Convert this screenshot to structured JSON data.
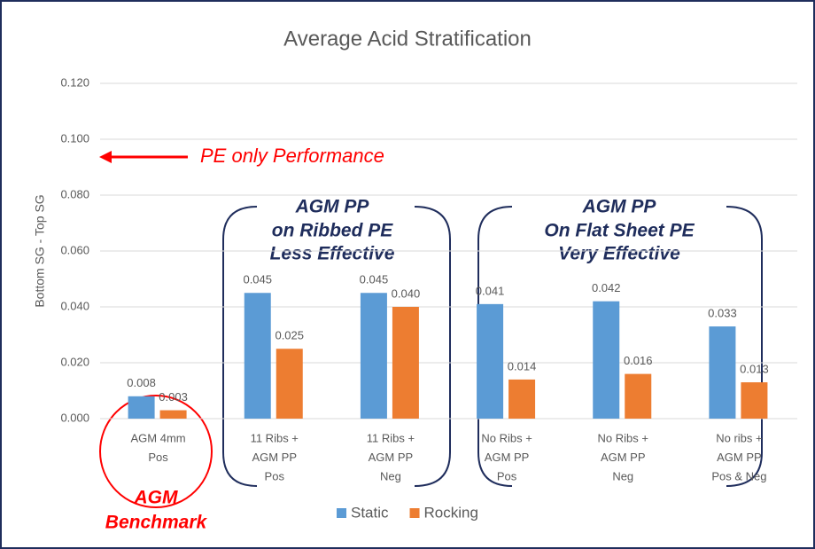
{
  "chart_data": {
    "type": "bar",
    "title": "Average Acid Stratification",
    "y_label": "Bottom SG - Top SG",
    "categories": [
      [
        "AGM 4mm",
        "Pos"
      ],
      [
        "11 Ribs +",
        "AGM PP",
        "Pos"
      ],
      [
        "11 Ribs +",
        "AGM PP",
        "Neg"
      ],
      [
        "No Ribs +",
        "AGM PP",
        "Pos"
      ],
      [
        "No Ribs +",
        "AGM PP",
        "Neg"
      ],
      [
        "No ribs +",
        "AGM PP",
        "Pos & Neg"
      ]
    ],
    "series": [
      {
        "name": "Static",
        "color": "#5b9bd5",
        "values": [
          0.008,
          0.045,
          0.045,
          0.041,
          0.042,
          0.033
        ],
        "value_labels": [
          "0.008",
          "0.045",
          "0.045",
          "0.041",
          "0.042",
          "0.033"
        ]
      },
      {
        "name": "Rocking",
        "color": "#ed7d31",
        "values": [
          0.003,
          0.025,
          0.04,
          0.014,
          0.016,
          0.013
        ],
        "value_labels": [
          "0.003",
          "0.025",
          "0.040",
          "0.014",
          "0.016",
          "0.013"
        ]
      }
    ],
    "ylim": [
      0,
      0.12
    ],
    "yticks": [
      {
        "value": 0,
        "label": "0.000"
      },
      {
        "value": 0.02,
        "label": "0.020"
      },
      {
        "value": 0.04,
        "label": "0.040"
      },
      {
        "value": 0.06,
        "label": "0.060"
      },
      {
        "value": 0.08,
        "label": "0.080"
      },
      {
        "value": 0.1,
        "label": "0.100"
      },
      {
        "value": 0.12,
        "label": "0.120"
      }
    ],
    "grid": true,
    "legend": "bottom",
    "annotations": {
      "pe_only": "PE only Performance",
      "ribbed": [
        "AGM PP",
        "on Ribbed PE",
        "Less Effective"
      ],
      "flat": [
        "AGM PP",
        "On Flat Sheet PE",
        "Very Effective"
      ],
      "benchmark": [
        "AGM",
        "Benchmark"
      ]
    }
  }
}
